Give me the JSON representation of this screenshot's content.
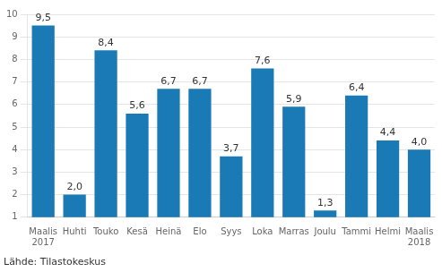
{
  "chart_data": {
    "type": "bar",
    "categories": [
      "Maalis\n2017",
      "Huhti",
      "Touko",
      "Kesä",
      "Heinä",
      "Elo",
      "Syys",
      "Loka",
      "Marras",
      "Joulu",
      "Tammi",
      "Helmi",
      "Maalis\n2018"
    ],
    "values": [
      9.5,
      2.0,
      8.4,
      5.6,
      6.7,
      6.7,
      3.7,
      7.6,
      5.9,
      1.3,
      6.4,
      4.4,
      4.0
    ],
    "value_labels": [
      "9,5",
      "2,0",
      "8,4",
      "5,6",
      "6,7",
      "6,7",
      "3,7",
      "7,6",
      "5,9",
      "1,3",
      "6,4",
      "4,4",
      "4,0"
    ],
    "color": "#1a7ab5",
    "ylim": [
      1,
      10
    ],
    "yticks": [
      1,
      2,
      3,
      4,
      5,
      6,
      7,
      8,
      9,
      10
    ],
    "grid": true,
    "data_labels": true,
    "annotation": "Lähde: Tilastokeskus"
  }
}
